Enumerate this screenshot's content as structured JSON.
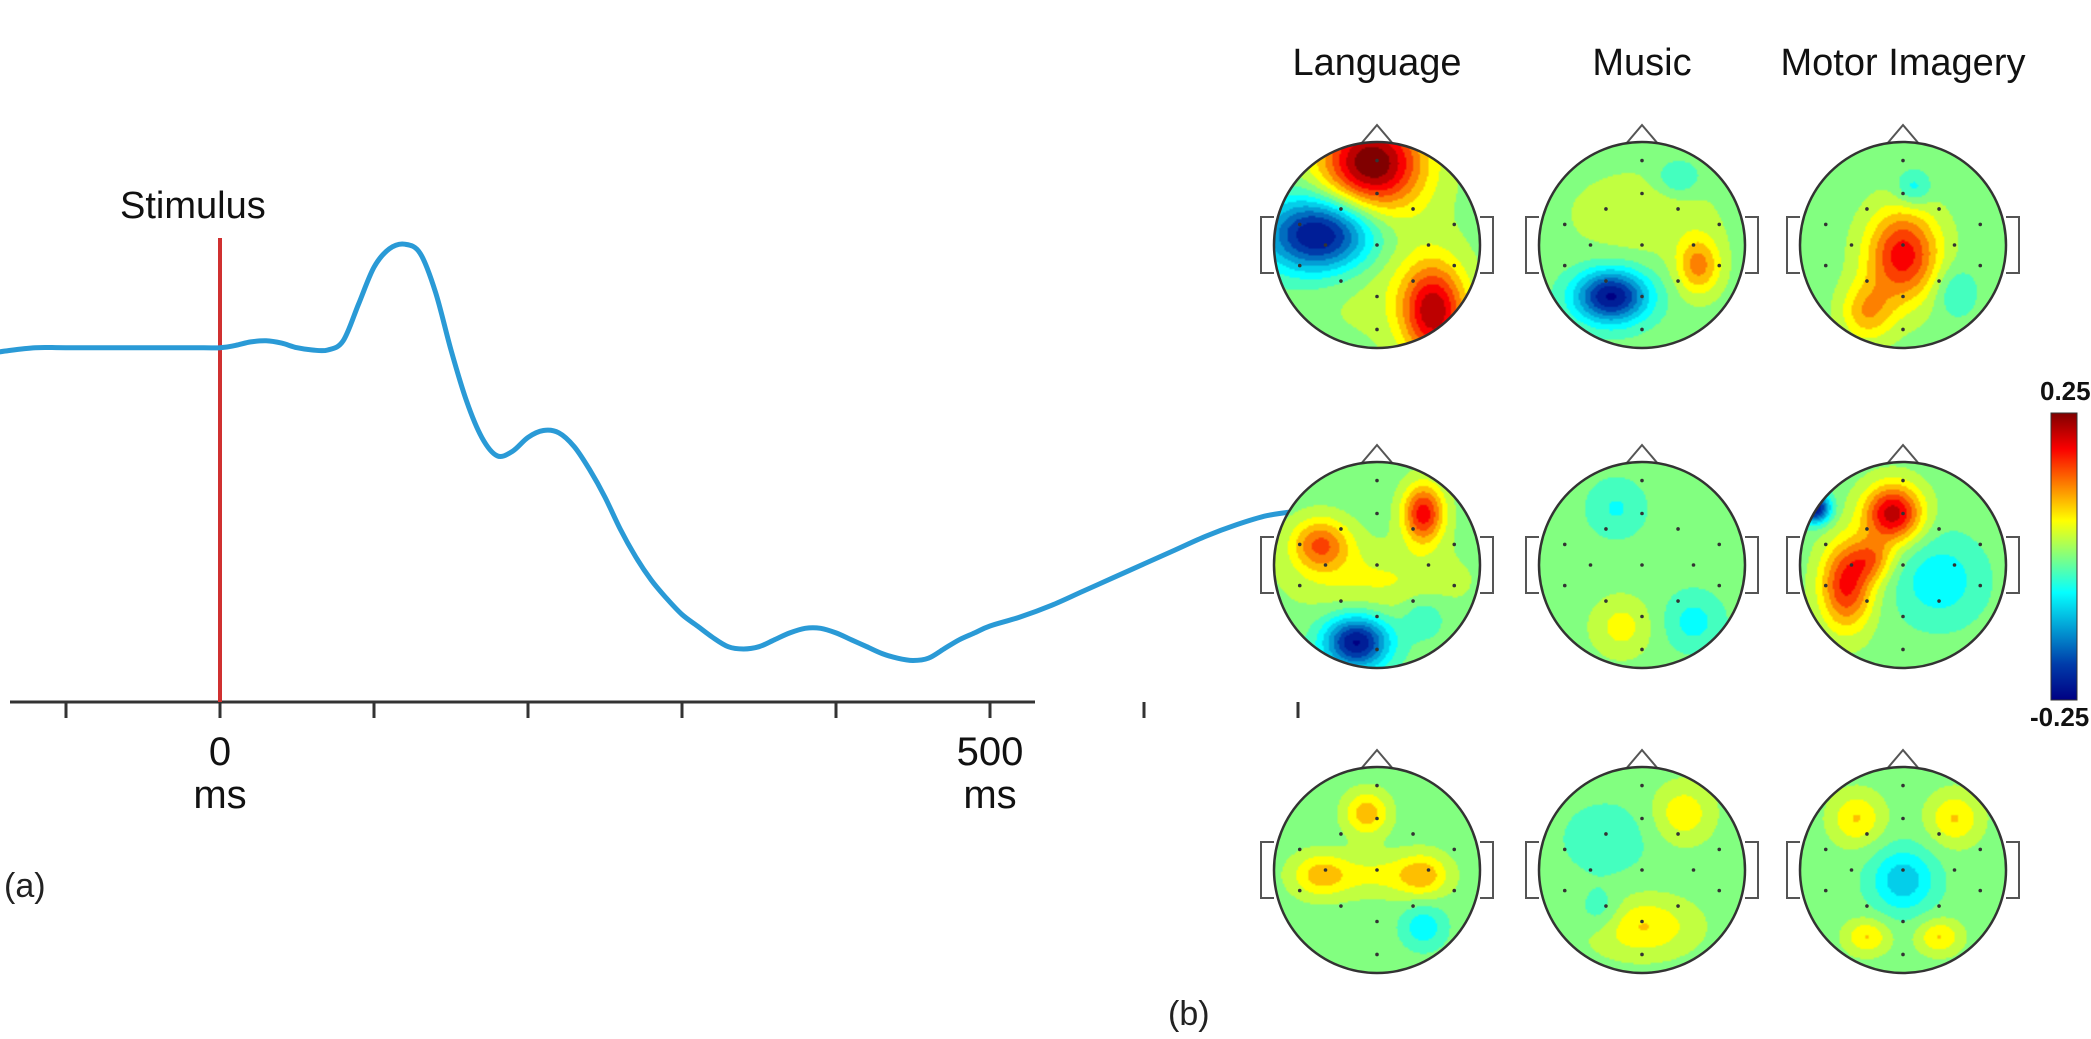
{
  "panel_a": {
    "label": "(a)",
    "stimulus_label": "Stimulus",
    "colors": {
      "trace": "#2a9ad6",
      "stimulus_line": "#d03030",
      "axis": "#333333"
    }
  },
  "panel_b": {
    "label": "(b)",
    "columns": [
      "Language",
      "Music",
      "Motor Imagery"
    ],
    "colorbar": {
      "max_label": "0.25",
      "min_label": "-0.25"
    },
    "colormap": "jet"
  },
  "chart_data": [
    {
      "type": "line",
      "title": "",
      "xlabel": "",
      "ylabel": "",
      "xlim": [
        -200,
        750
      ],
      "x_tick_labels": [
        {
          "x": 0,
          "label": "0",
          "unit": "ms"
        },
        {
          "x": 500,
          "label": "500",
          "unit": "ms"
        }
      ],
      "x_minor_ticks": [
        -200,
        -100,
        0,
        100,
        200,
        300,
        400,
        500,
        600,
        700
      ],
      "vertical_marker": {
        "x": 0,
        "label": "Stimulus"
      },
      "series": [
        {
          "x": [
            -200,
            -180,
            -160,
            -140,
            -120,
            -100,
            -60,
            -20,
            0,
            10,
            20,
            30,
            40,
            50,
            60,
            70,
            80,
            90,
            100,
            110,
            120,
            130,
            140,
            150,
            160,
            170,
            180,
            190,
            200,
            210,
            220,
            230,
            240,
            250,
            260,
            270,
            280,
            290,
            300,
            310,
            320,
            330,
            340,
            350,
            360,
            370,
            380,
            390,
            400,
            410,
            420,
            430,
            440,
            450,
            460,
            470,
            480,
            490,
            500,
            520,
            540,
            560,
            580,
            600,
            620,
            640,
            660,
            680,
            700
          ],
          "y": [
            0.0,
            -0.02,
            -0.025,
            -0.005,
            0.01,
            0.01,
            0.01,
            0.01,
            0.01,
            0.02,
            0.035,
            0.04,
            0.03,
            0.01,
            0.0,
            0.0,
            0.04,
            0.2,
            0.36,
            0.44,
            0.46,
            0.42,
            0.25,
            0.0,
            -0.22,
            -0.38,
            -0.46,
            -0.44,
            -0.38,
            -0.35,
            -0.36,
            -0.42,
            -0.52,
            -0.64,
            -0.78,
            -0.9,
            -1.0,
            -1.08,
            -1.15,
            -1.2,
            -1.25,
            -1.29,
            -1.3,
            -1.29,
            -1.26,
            -1.23,
            -1.21,
            -1.21,
            -1.23,
            -1.26,
            -1.29,
            -1.32,
            -1.34,
            -1.35,
            -1.34,
            -1.3,
            -1.26,
            -1.23,
            -1.2,
            -1.16,
            -1.11,
            -1.05,
            -0.99,
            -0.93,
            -0.87,
            -0.81,
            -0.76,
            -0.72,
            -0.7
          ]
        }
      ],
      "ylim": [
        -1.8,
        0.9
      ]
    },
    {
      "type": "heatmap",
      "title": "",
      "columns": [
        "Language",
        "Music",
        "Motor Imagery"
      ],
      "rows": 3,
      "color_range": [
        -0.25,
        0.25
      ],
      "note_units": "normalized head coordinates (-1..1, front = -y)",
      "maps": [
        [
          {
            "blobs": [
              [
                -0.05,
                -0.8,
                0.35,
                0.32,
                0.26
              ],
              [
                -0.55,
                -0.1,
                0.38,
                0.26,
                -0.26
              ],
              [
                0.55,
                0.65,
                0.22,
                0.32,
                0.22
              ],
              [
                0.0,
                0.15,
                0.5,
                0.5,
                0.04
              ]
            ]
          },
          {
            "blobs": [
              [
                -0.3,
                0.5,
                0.25,
                0.18,
                -0.24
              ],
              [
                0.55,
                0.2,
                0.15,
                0.2,
                0.12
              ],
              [
                0.35,
                -0.65,
                0.15,
                0.12,
                -0.06
              ],
              [
                0.0,
                -0.3,
                0.5,
                0.3,
                0.04
              ]
            ]
          },
          {
            "blobs": [
              [
                0.0,
                0.1,
                0.25,
                0.32,
                0.19
              ],
              [
                0.1,
                -0.55,
                0.12,
                0.12,
                -0.07
              ],
              [
                -0.35,
                0.65,
                0.18,
                0.2,
                0.1
              ],
              [
                0.5,
                0.45,
                0.15,
                0.18,
                -0.05
              ]
            ]
          }
        ],
        [
          {
            "blobs": [
              [
                0.45,
                -0.5,
                0.14,
                0.2,
                0.19
              ],
              [
                -0.55,
                -0.2,
                0.2,
                0.18,
                0.14
              ],
              [
                -0.2,
                0.75,
                0.22,
                0.18,
                -0.24
              ],
              [
                0.45,
                0.5,
                0.15,
                0.15,
                -0.05
              ],
              [
                0.0,
                0.15,
                0.6,
                0.25,
                0.05
              ]
            ]
          },
          {
            "blobs": [
              [
                -0.25,
                -0.55,
                0.2,
                0.2,
                -0.05
              ],
              [
                0.5,
                0.55,
                0.2,
                0.2,
                -0.06
              ],
              [
                -0.2,
                0.6,
                0.2,
                0.2,
                0.06
              ]
            ]
          },
          {
            "blobs": [
              [
                -0.1,
                -0.5,
                0.2,
                0.2,
                0.22
              ],
              [
                -0.55,
                0.2,
                0.18,
                0.3,
                0.18
              ],
              [
                0.35,
                0.15,
                0.3,
                0.3,
                -0.07
              ],
              [
                -0.85,
                -0.55,
                0.1,
                0.1,
                -0.24
              ],
              [
                -0.3,
                -0.05,
                0.15,
                0.15,
                0.1
              ]
            ]
          }
        ],
        [
          {
            "blobs": [
              [
                -0.1,
                -0.55,
                0.15,
                0.15,
                0.1
              ],
              [
                -0.55,
                0.05,
                0.2,
                0.15,
                0.09
              ],
              [
                0.45,
                0.05,
                0.18,
                0.15,
                0.09
              ],
              [
                0.45,
                0.55,
                0.15,
                0.15,
                -0.07
              ],
              [
                0.0,
                0.05,
                0.3,
                0.15,
                0.05
              ]
            ]
          },
          {
            "blobs": [
              [
                -0.35,
                -0.3,
                0.3,
                0.25,
                -0.04
              ],
              [
                0.4,
                -0.55,
                0.2,
                0.2,
                0.07
              ],
              [
                0.0,
                0.55,
                0.35,
                0.2,
                0.08
              ],
              [
                -0.4,
                0.4,
                0.15,
                0.15,
                -0.05
              ]
            ]
          },
          {
            "blobs": [
              [
                0.0,
                0.1,
                0.22,
                0.22,
                -0.1
              ],
              [
                -0.45,
                -0.5,
                0.18,
                0.18,
                0.08
              ],
              [
                0.5,
                -0.5,
                0.18,
                0.18,
                0.08
              ],
              [
                -0.35,
                0.65,
                0.15,
                0.12,
                0.08
              ],
              [
                0.35,
                0.65,
                0.15,
                0.12,
                0.08
              ]
            ]
          }
        ]
      ]
    }
  ]
}
